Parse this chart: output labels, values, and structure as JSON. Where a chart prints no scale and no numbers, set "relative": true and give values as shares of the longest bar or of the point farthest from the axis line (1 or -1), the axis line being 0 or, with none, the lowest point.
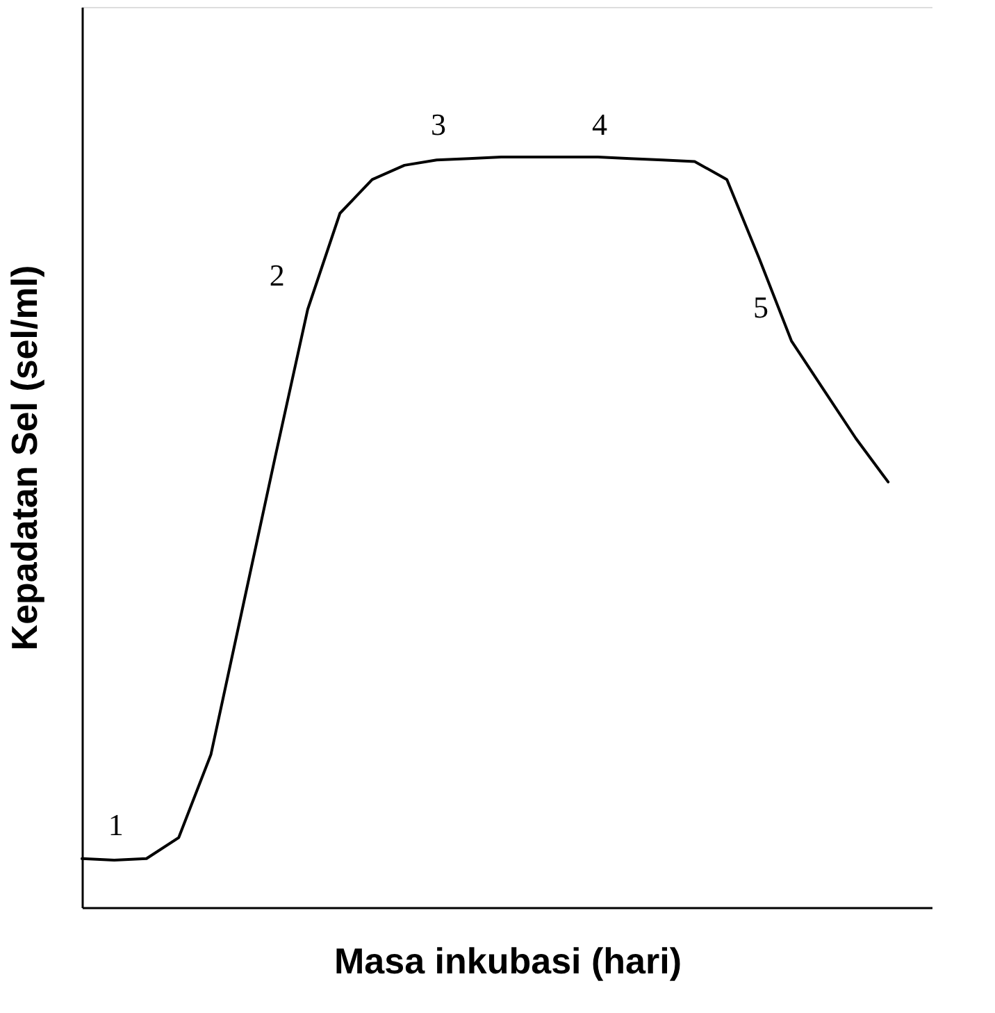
{
  "chart_data": {
    "type": "line",
    "relative": true,
    "xlabel": "Masa inkubasi (hari)",
    "ylabel": "Kepadatan Sel (sel/ml)",
    "categories": [
      null,
      null,
      null,
      null,
      null,
      null,
      null,
      null,
      null,
      null,
      null,
      null,
      null,
      null,
      null,
      null,
      null,
      null,
      null,
      null,
      null,
      null,
      null,
      null,
      null,
      null
    ],
    "tick_labels": false,
    "grid": false,
    "marker": "none",
    "line_style": "solid",
    "series": [
      {
        "color": "#000000",
        "values": [
          0.065,
          0.063,
          0.065,
          0.093,
          0.204,
          0.403,
          0.602,
          0.797,
          0.925,
          0.97,
          0.989,
          0.996,
          0.998,
          1.0,
          1.0,
          1.0,
          1.0,
          0.998,
          0.996,
          0.994,
          0.97,
          0.865,
          0.755,
          0.69,
          0.625,
          0.567
        ]
      }
    ],
    "annotations": [
      "1",
      "2",
      "3",
      "4",
      "5"
    ]
  }
}
